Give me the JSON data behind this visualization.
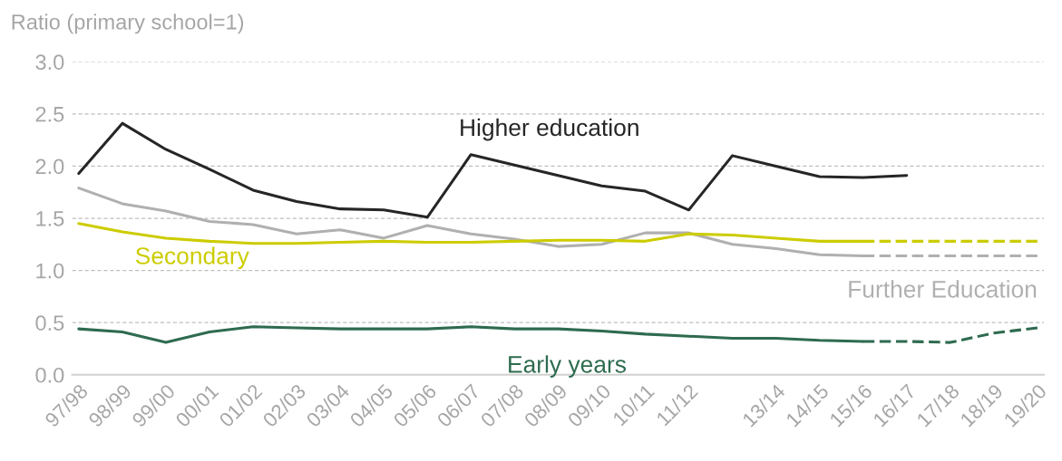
{
  "chart_data": {
    "type": "line",
    "ylabel": "Ratio (primary school=1)",
    "categories": [
      "97/98",
      "98/99",
      "99/00",
      "00/01",
      "01/02",
      "02/03",
      "03/04",
      "04/05",
      "05/06",
      "06/07",
      "07/08",
      "08/09",
      "09/10",
      "10/11",
      "11/12",
      null,
      "13/14",
      "14/15",
      "15/16",
      "16/17",
      "17/18",
      "18/19",
      "19/20"
    ],
    "series": [
      {
        "name": "Higher education",
        "color": "#262626",
        "line_style": "solid",
        "values": [
          1.93,
          2.41,
          2.16,
          1.97,
          1.77,
          1.66,
          1.59,
          1.58,
          1.51,
          2.11,
          2.01,
          1.91,
          1.81,
          1.76,
          1.58,
          2.1,
          2.0,
          1.9,
          1.89,
          1.91,
          null,
          null,
          null
        ]
      },
      {
        "name": "Further Education",
        "color": "#b0b0b0",
        "line_style": "solid",
        "values": [
          1.79,
          1.64,
          1.57,
          1.47,
          1.44,
          1.35,
          1.39,
          1.31,
          1.43,
          1.35,
          1.3,
          1.23,
          1.25,
          1.36,
          1.36,
          1.25,
          1.21,
          1.15,
          1.14,
          null,
          null,
          null,
          null
        ]
      },
      {
        "color": "#b0b0b0",
        "line_style": "dashed",
        "values": [
          null,
          null,
          null,
          null,
          null,
          null,
          null,
          null,
          null,
          null,
          null,
          null,
          null,
          null,
          null,
          null,
          null,
          null,
          1.14,
          1.14,
          1.14,
          1.14,
          1.14
        ]
      },
      {
        "name": "Secondary",
        "color": "#cccc00",
        "line_style": "solid",
        "values": [
          1.45,
          1.37,
          1.31,
          1.28,
          1.26,
          1.26,
          1.27,
          1.28,
          1.27,
          1.27,
          1.28,
          1.29,
          1.29,
          1.28,
          1.35,
          1.34,
          1.31,
          1.28,
          1.28,
          null,
          null,
          null,
          null
        ]
      },
      {
        "color": "#cccc00",
        "line_style": "dashed",
        "values": [
          null,
          null,
          null,
          null,
          null,
          null,
          null,
          null,
          null,
          null,
          null,
          null,
          null,
          null,
          null,
          null,
          null,
          null,
          1.28,
          1.28,
          1.28,
          1.28,
          1.28
        ]
      },
      {
        "name": "Early years",
        "color": "#2e6b4f",
        "line_style": "solid",
        "values": [
          0.44,
          0.41,
          0.31,
          0.41,
          0.46,
          0.45,
          0.44,
          0.44,
          0.44,
          0.46,
          0.44,
          0.44,
          0.42,
          0.39,
          0.37,
          0.35,
          0.35,
          0.33,
          0.32,
          null,
          null,
          null,
          null
        ]
      },
      {
        "color": "#2e6b4f",
        "line_style": "dashed",
        "values": [
          null,
          null,
          null,
          null,
          null,
          null,
          null,
          null,
          null,
          null,
          null,
          null,
          null,
          null,
          null,
          null,
          null,
          null,
          0.32,
          0.32,
          0.31,
          0.4,
          0.45
        ]
      }
    ],
    "ylim": [
      0,
      3
    ],
    "yticks": [
      {
        "value": 0,
        "label": "0.0"
      },
      {
        "value": 0.5,
        "label": "0.5"
      },
      {
        "value": 1,
        "label": "1.0"
      },
      {
        "value": 1.5,
        "label": "1.5"
      },
      {
        "value": 2,
        "label": "2.0"
      },
      {
        "value": 2.5,
        "label": "2.5"
      },
      {
        "value": 3,
        "label": "3.0"
      }
    ],
    "grid": "y",
    "legend": false,
    "marker": "none"
  }
}
